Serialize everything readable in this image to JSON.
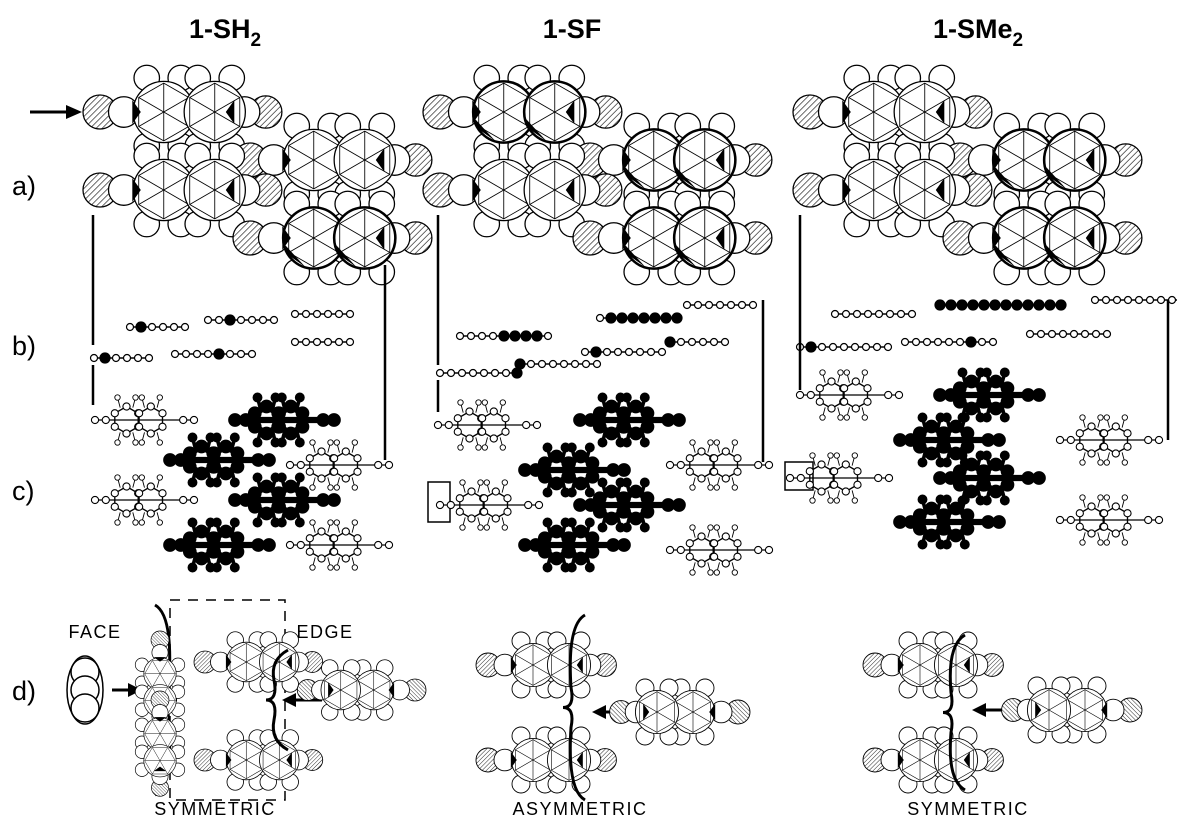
{
  "columns": [
    {
      "title": "1-SH",
      "subscript": "2",
      "caption": "SYMMETRIC"
    },
    {
      "title": "1-SF",
      "caption": "ASYMMETRIC"
    },
    {
      "title": "1-SMe",
      "subscript": "2",
      "caption": "SYMMETRIC"
    }
  ],
  "row_labels": [
    "a)",
    "b)",
    "c)",
    "d)"
  ],
  "annotations": {
    "face": "FACE",
    "edge": "EDGE"
  }
}
